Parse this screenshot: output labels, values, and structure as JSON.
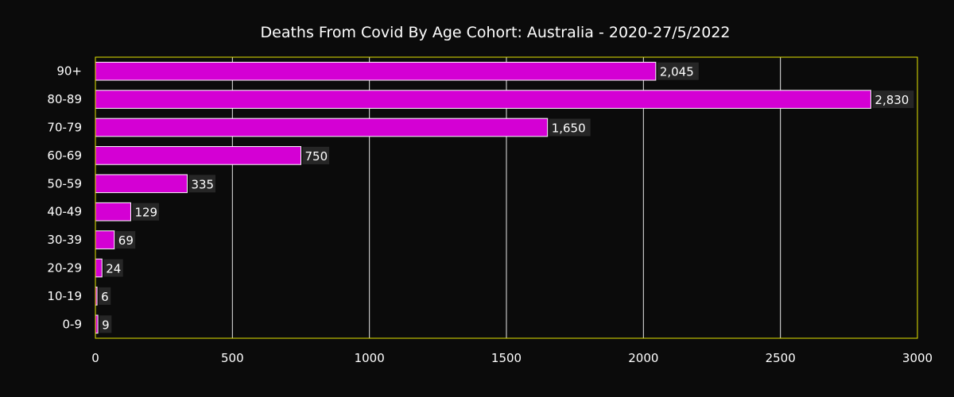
{
  "chart_data": {
    "type": "bar",
    "orientation": "horizontal",
    "title": "Deaths From Covid By Age Cohort: Australia - 2020-27/5/2022",
    "categories": [
      "90+",
      "80-89",
      "70-79",
      "60-69",
      "50-59",
      "40-49",
      "30-39",
      "20-29",
      "10-19",
      "0-9"
    ],
    "values": [
      2045,
      2830,
      1650,
      750,
      335,
      129,
      69,
      24,
      6,
      9
    ],
    "value_labels": [
      "2,045",
      "2,830",
      "1,650",
      "750",
      "335",
      "129",
      "69",
      "24",
      "6",
      "9"
    ],
    "xlabel": "",
    "ylabel": "",
    "xlim": [
      0,
      3000
    ],
    "x_ticks": [
      0,
      500,
      1000,
      1500,
      2000,
      2500,
      3000
    ],
    "x_tick_labels": [
      "0",
      "500",
      "1000",
      "1500",
      "2000",
      "2500",
      "3000"
    ],
    "grid": true,
    "legend": "none",
    "colors": {
      "bar_fill": "#d400d4",
      "bar_stroke": "#ffffff",
      "background": "#0b0b0b",
      "plot_border": "#e6e600",
      "grid": "#e8e8e8",
      "label_bg": "#262626",
      "text": "#ffffff"
    }
  }
}
